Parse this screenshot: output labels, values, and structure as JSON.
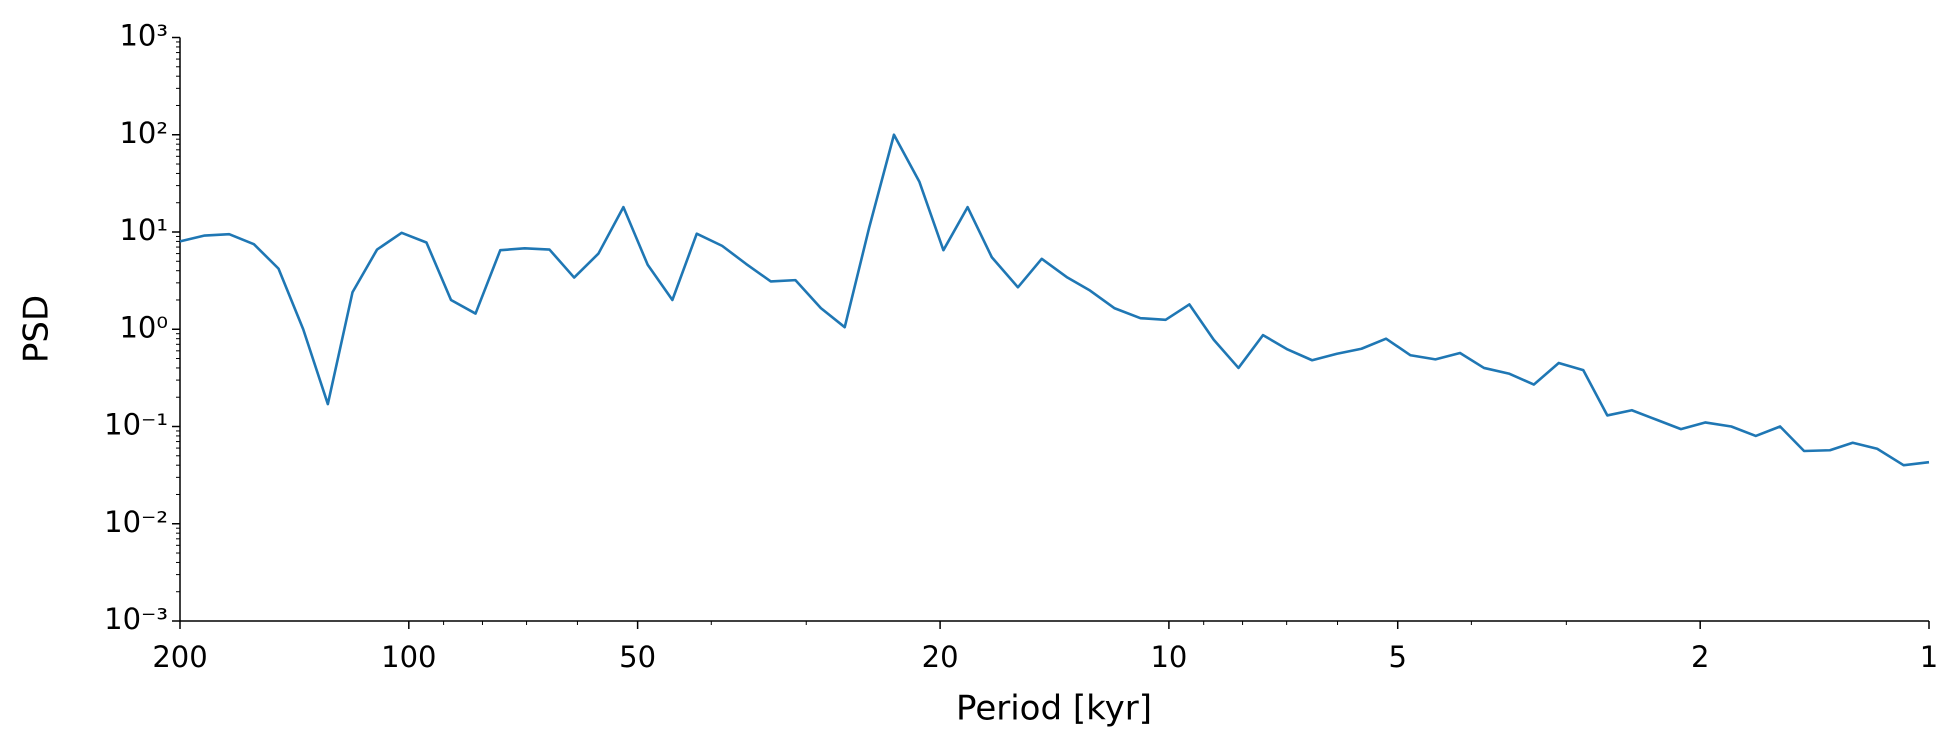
{
  "chart_data": {
    "type": "line",
    "xlabel": "Period [kyr]",
    "ylabel": "PSD",
    "xscale": "log",
    "yscale": "log",
    "x_reversed": true,
    "xlim": [
      200,
      1
    ],
    "ylim": [
      0.001,
      1000
    ],
    "xticks": [
      200,
      100,
      50,
      20,
      10,
      5,
      2,
      1
    ],
    "xticks_minor": [
      90,
      80,
      70,
      60,
      40,
      30,
      9,
      8,
      7,
      6,
      4,
      3
    ],
    "yticks": [
      {
        "value": 0.001,
        "label": "10⁻³"
      },
      {
        "value": 0.01,
        "label": "10⁻²"
      },
      {
        "value": 0.1,
        "label": "10⁻¹"
      },
      {
        "value": 1,
        "label": "10⁰"
      },
      {
        "value": 10,
        "label": "10¹"
      },
      {
        "value": 100,
        "label": "10²"
      },
      {
        "value": 1000,
        "label": "10³"
      }
    ],
    "yticks_minor": [
      0.002,
      0.003,
      0.004,
      0.005,
      0.006,
      0.007,
      0.008,
      0.009,
      0.02,
      0.03,
      0.04,
      0.05,
      0.06,
      0.07,
      0.08,
      0.09,
      0.2,
      0.3,
      0.4,
      0.5,
      0.6,
      0.7,
      0.8,
      0.9,
      2,
      3,
      4,
      5,
      6,
      7,
      8,
      9,
      20,
      30,
      40,
      50,
      60,
      70,
      80,
      90,
      200,
      300,
      400,
      500,
      600,
      700,
      800,
      900
    ],
    "x": [
      200,
      185.6,
      172.3,
      159.9,
      148.4,
      137.7,
      127.8,
      118.6,
      110.1,
      102.2,
      94.8,
      88.0,
      81.7,
      75.8,
      70.4,
      65.3,
      60.6,
      56.3,
      52.2,
      48.5,
      45.0,
      41.8,
      38.7,
      36.0,
      33.4,
      31.0,
      28.7,
      26.7,
      24.8,
      23.0,
      21.3,
      19.8,
      18.4,
      17.1,
      15.8,
      14.7,
      13.6,
      12.7,
      11.8,
      10.9,
      10.1,
      9.4,
      8.73,
      8.1,
      7.52,
      6.98,
      6.48,
      6.01,
      5.58,
      5.18,
      4.81,
      4.46,
      4.14,
      3.85,
      3.57,
      3.31,
      3.07,
      2.85,
      2.65,
      2.46,
      2.28,
      2.12,
      1.97,
      1.82,
      1.69,
      1.57,
      1.46,
      1.35,
      1.26,
      1.17,
      1.08,
      1.0
    ],
    "series": [
      {
        "color": "#1f77b4",
        "values": [
          8.0,
          9.2,
          9.5,
          7.5,
          4.2,
          1.0,
          0.17,
          2.4,
          6.6,
          9.8,
          7.8,
          2.0,
          1.45,
          6.5,
          6.8,
          6.6,
          3.4,
          6.0,
          18,
          4.6,
          2.0,
          9.6,
          7.2,
          4.7,
          3.1,
          3.2,
          1.65,
          1.05,
          11,
          100,
          33,
          6.5,
          18,
          5.5,
          2.7,
          5.3,
          3.4,
          2.5,
          1.65,
          1.3,
          1.25,
          1.8,
          0.78,
          0.4,
          0.87,
          0.62,
          0.48,
          0.56,
          0.63,
          0.8,
          0.54,
          0.49,
          0.57,
          0.4,
          0.35,
          0.27,
          0.45,
          0.38,
          0.13,
          0.147,
          0.117,
          0.094,
          0.11,
          0.1,
          0.08,
          0.1,
          0.056,
          0.057,
          0.068,
          0.059,
          0.04,
          0.043
        ]
      }
    ]
  }
}
